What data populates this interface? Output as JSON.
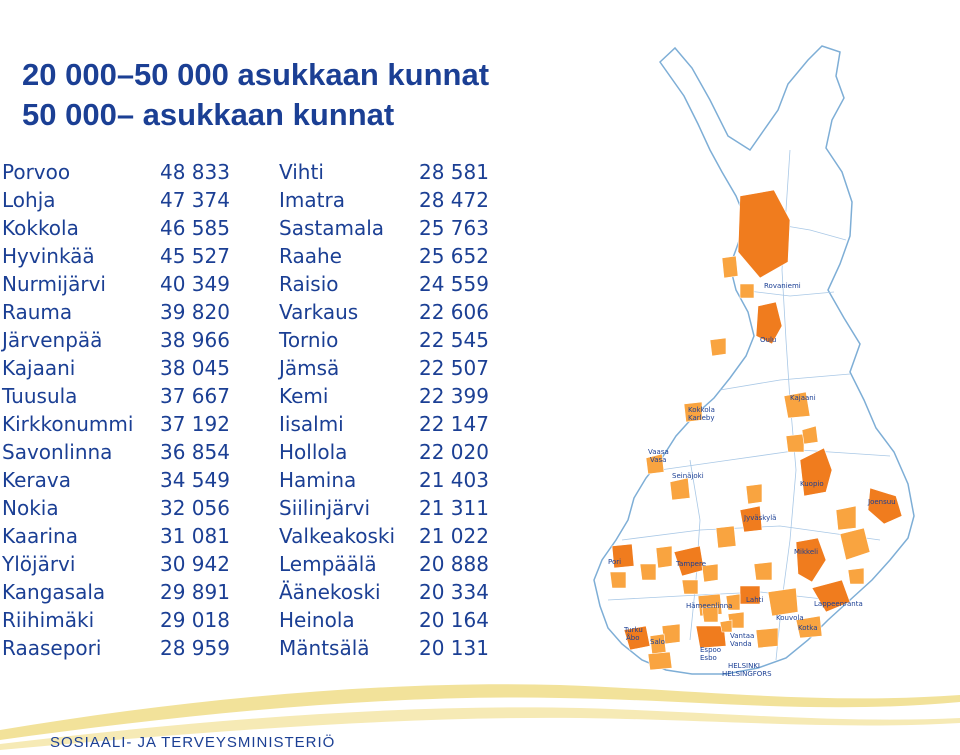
{
  "slide": {
    "title_line1": "20 000–50 000 asukkaan kunnat",
    "title_line2": "50 000– asukkaan kunnat"
  },
  "municipalities_left": [
    {
      "name": "Porvoo",
      "population": "48 833"
    },
    {
      "name": "Lohja",
      "population": "47 374"
    },
    {
      "name": "Kokkola",
      "population": "46 585"
    },
    {
      "name": "Hyvinkää",
      "population": "45 527"
    },
    {
      "name": "Nurmijärvi",
      "population": "40 349"
    },
    {
      "name": "Rauma",
      "population": "39 820"
    },
    {
      "name": "Järvenpää",
      "population": "38 966"
    },
    {
      "name": "Kajaani",
      "population": "38 045"
    },
    {
      "name": "Tuusula",
      "population": "37 667"
    },
    {
      "name": "Kirkkonummi",
      "population": "37 192"
    },
    {
      "name": "Savonlinna",
      "population": "36 854"
    },
    {
      "name": "Kerava",
      "population": "34 549"
    },
    {
      "name": "Nokia",
      "population": "32 056"
    },
    {
      "name": "Kaarina",
      "population": "31 081"
    },
    {
      "name": "Ylöjärvi",
      "population": "30 942"
    },
    {
      "name": "Kangasala",
      "population": "29 891"
    },
    {
      "name": "Riihimäki",
      "population": "29 018"
    },
    {
      "name": "Raasepori",
      "population": "28 959"
    }
  ],
  "municipalities_right": [
    {
      "name": "Vihti",
      "population": "28 581"
    },
    {
      "name": "Imatra",
      "population": "28 472"
    },
    {
      "name": "Sastamala",
      "population": "25 763"
    },
    {
      "name": "Raahe",
      "population": "25 652"
    },
    {
      "name": "Raisio",
      "population": "24 559"
    },
    {
      "name": "Varkaus",
      "population": "22 606"
    },
    {
      "name": "Tornio",
      "population": "22 545"
    },
    {
      "name": "Jämsä",
      "population": "22 507"
    },
    {
      "name": "Kemi",
      "population": "22 399"
    },
    {
      "name": "Iisalmi",
      "population": "22 147"
    },
    {
      "name": "Hollola",
      "population": "22 020"
    },
    {
      "name": "Hamina",
      "population": "21 403"
    },
    {
      "name": "Siilinjärvi",
      "population": "21 311"
    },
    {
      "name": "Valkeakoski",
      "population": "21 022"
    },
    {
      "name": "Lempäälä",
      "population": "20 888"
    },
    {
      "name": "Äänekoski",
      "population": "20 334"
    },
    {
      "name": "Heinola",
      "population": "20 164"
    },
    {
      "name": "Mäntsälä",
      "population": "20 131"
    }
  ],
  "map": {
    "cities": {
      "rovaniemi": "Rovaniemi",
      "oulu": "Oulu",
      "kajaani": "Kajaani",
      "kokkola": "Kokkola",
      "karleby": "Karleby",
      "vaasa": "Vaasa",
      "vasa": "Vasa",
      "kuopio": "Kuopio",
      "seinajoki": "Seinäjoki",
      "jyvaskyla": "Jyväskylä",
      "joensuu": "Joensuu",
      "mikkeli": "Mikkeli",
      "pori": "Pori",
      "tampere": "Tampere",
      "hameenlinna": "Hämeenlinna",
      "lahti": "Lahti",
      "kouvola": "Kouvola",
      "lappeenranta": "Lappeenranta",
      "turku": "Turku",
      "abo": "Åbo",
      "vantaa": "Vantaa",
      "vanda": "Vanda",
      "salo": "Salo",
      "espoo": "Espoo",
      "esbo": "Esbo",
      "kotka": "Kotka",
      "helsinki": "HELSINKI",
      "helsingfors": "HELSINGFORS"
    },
    "colors": {
      "large": "#f07c1e",
      "medium": "#f9a440",
      "outline": "#7eaed6"
    }
  },
  "footer": {
    "ministry": "SOSIAALI- JA TERVEYSMINISTERIÖ"
  },
  "colors": {
    "title": "#1b3f94",
    "wave": "#f2e29a"
  }
}
